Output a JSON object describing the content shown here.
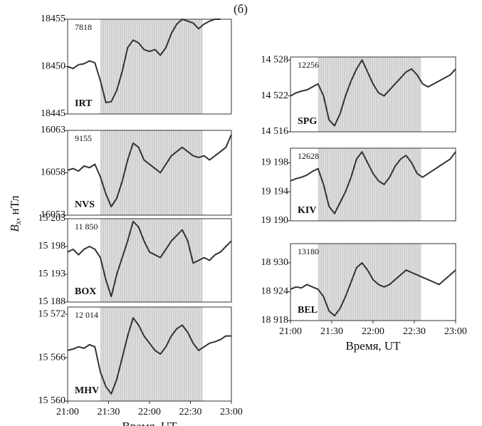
{
  "title": "(б)",
  "ylabel": {
    "symbol": "B",
    "subscript": "x",
    "unit": ", нТл"
  },
  "chart_data": [
    {
      "type": "line",
      "station": "IRT",
      "annotation": "7818",
      "shade": [
        "21:24",
        "22:39"
      ],
      "x": [
        "21:00",
        "21:04",
        "21:08",
        "21:12",
        "21:16",
        "21:20",
        "21:24",
        "21:28",
        "21:32",
        "21:36",
        "21:40",
        "21:44",
        "21:48",
        "21:52",
        "21:56",
        "22:00",
        "22:04",
        "22:08",
        "22:12",
        "22:16",
        "22:20",
        "22:24",
        "22:28",
        "22:32",
        "22:36",
        "22:40",
        "22:44",
        "22:48",
        "22:52",
        "22:56",
        "23:00"
      ],
      "values": [
        18450.0,
        18449.8,
        18450.2,
        18450.3,
        18450.6,
        18450.4,
        18448.5,
        18446.2,
        18446.3,
        18447.5,
        18449.5,
        18452.0,
        18452.8,
        18452.5,
        18451.8,
        18451.6,
        18451.8,
        18451.2,
        18452.0,
        18453.5,
        18454.5,
        18455.0,
        18454.8,
        18454.6,
        18454.0,
        18454.5,
        18454.8,
        18455.0,
        18455.0,
        null,
        null
      ],
      "xlim": [
        "21:00",
        "23:00"
      ],
      "ylim": [
        18445,
        18455
      ],
      "yticks": [
        18445,
        18450,
        18455
      ],
      "color": "#333333"
    },
    {
      "type": "line",
      "station": "NVS",
      "annotation": "9155",
      "shade": [
        "21:24",
        "22:39"
      ],
      "x": [
        "21:00",
        "21:04",
        "21:08",
        "21:12",
        "21:16",
        "21:20",
        "21:24",
        "21:28",
        "21:32",
        "21:36",
        "21:40",
        "21:44",
        "21:48",
        "21:52",
        "21:56",
        "22:00",
        "22:04",
        "22:08",
        "22:12",
        "22:16",
        "22:20",
        "22:24",
        "22:28",
        "22:32",
        "22:36",
        "22:40",
        "22:44",
        "22:48",
        "22:52",
        "22:56",
        "23:00"
      ],
      "values": [
        16058.3,
        16058.5,
        16058.2,
        16058.8,
        16058.6,
        16059.0,
        16057.5,
        16055.5,
        16054.0,
        16055.0,
        16057.0,
        16059.5,
        16061.5,
        16061.0,
        16059.5,
        16059.0,
        16058.5,
        16058.0,
        16059.0,
        16060.0,
        16060.5,
        16061.0,
        16060.5,
        16060.0,
        16059.8,
        16060.0,
        16059.5,
        16060.0,
        16060.5,
        16061.0,
        16062.5
      ],
      "xlim": [
        "21:00",
        "23:00"
      ],
      "ylim": [
        16053,
        16063
      ],
      "yticks": [
        16053,
        16058,
        16063
      ],
      "color": "#333333"
    },
    {
      "type": "line",
      "station": "BOX",
      "annotation": "11 850",
      "shade": [
        "21:24",
        "22:39"
      ],
      "x": [
        "21:00",
        "21:04",
        "21:08",
        "21:12",
        "21:16",
        "21:20",
        "21:24",
        "21:28",
        "21:32",
        "21:36",
        "21:40",
        "21:44",
        "21:48",
        "21:52",
        "21:56",
        "22:00",
        "22:04",
        "22:08",
        "22:12",
        "22:16",
        "22:20",
        "22:24",
        "22:28",
        "22:32",
        "22:36",
        "22:40",
        "22:44",
        "22:48",
        "22:52",
        "22:56",
        "23:00"
      ],
      "values": [
        15197,
        15197.5,
        15196.5,
        15197.5,
        15198,
        15197.5,
        15196,
        15192,
        15189,
        15193,
        15196,
        15199,
        15202.5,
        15201.5,
        15199,
        15197,
        15196.5,
        15196,
        15197.5,
        15199,
        15200,
        15201,
        15199,
        15195,
        15195.5,
        15196,
        15195.5,
        15196.5,
        15197,
        15198,
        15199
      ],
      "xlim": [
        "21:00",
        "23:00"
      ],
      "ylim": [
        15188,
        15203
      ],
      "yticks": [
        {
          "value": 15188,
          "label": "15 188"
        },
        {
          "value": 15193,
          "label": "15 193"
        },
        {
          "value": 15198,
          "label": "15 198"
        },
        {
          "value": 15203,
          "label": "15 203"
        }
      ],
      "color": "#333333"
    },
    {
      "type": "line",
      "station": "MHV",
      "annotation": "12 014",
      "shade": [
        "21:24",
        "22:39"
      ],
      "x": [
        "21:00",
        "21:04",
        "21:08",
        "21:12",
        "21:16",
        "21:20",
        "21:24",
        "21:28",
        "21:32",
        "21:36",
        "21:40",
        "21:44",
        "21:48",
        "21:52",
        "21:56",
        "22:00",
        "22:04",
        "22:08",
        "22:12",
        "22:16",
        "22:20",
        "22:24",
        "22:28",
        "22:32",
        "22:36",
        "22:40",
        "22:44",
        "22:48",
        "22:52",
        "22:56",
        "23:00"
      ],
      "values": [
        15567,
        15567.2,
        15567.5,
        15567.3,
        15567.8,
        15567.5,
        15564,
        15562,
        15561,
        15563,
        15566,
        15569,
        15571.5,
        15570.5,
        15569,
        15568,
        15567,
        15566.5,
        15567.5,
        15569,
        15570,
        15570.5,
        15569.5,
        15568,
        15567,
        15567.5,
        15568,
        15568.2,
        15568.5,
        15569,
        15569
      ],
      "xlim": [
        "21:00",
        "23:00"
      ],
      "ylim": [
        15560,
        15573
      ],
      "yticks": [
        {
          "value": 15560,
          "label": "15 560"
        },
        {
          "value": 15566,
          "label": "15 566"
        },
        {
          "value": 15572,
          "label": "15 572"
        }
      ],
      "xticks": [
        "21:00",
        "21:30",
        "22:00",
        "22:30",
        "23:00"
      ],
      "xlabel": "Время, UT",
      "color": "#333333"
    },
    {
      "type": "line",
      "station": "SPG",
      "annotation": "12256",
      "shade": [
        "21:20",
        "22:35"
      ],
      "x": [
        "21:00",
        "21:04",
        "21:08",
        "21:12",
        "21:16",
        "21:20",
        "21:24",
        "21:28",
        "21:32",
        "21:36",
        "21:40",
        "21:44",
        "21:48",
        "21:52",
        "21:56",
        "22:00",
        "22:04",
        "22:08",
        "22:12",
        "22:16",
        "22:20",
        "22:24",
        "22:28",
        "22:32",
        "22:36",
        "22:40",
        "22:44",
        "22:48",
        "22:52",
        "22:56",
        "23:00"
      ],
      "values": [
        14522,
        14522.5,
        14522.8,
        14523,
        14523.5,
        14524,
        14522,
        14518,
        14517,
        14519,
        14522,
        14524.5,
        14526.5,
        14528,
        14526,
        14524,
        14522.5,
        14522,
        14523,
        14524,
        14525,
        14526,
        14526.5,
        14525.5,
        14524,
        14523.5,
        14524,
        14524.5,
        14525,
        14525.5,
        14526.5
      ],
      "xlim": [
        "21:00",
        "23:00"
      ],
      "ylim": [
        14516,
        14528.5
      ],
      "yticks": [
        {
          "value": 14516,
          "label": "14 516"
        },
        {
          "value": 14522,
          "label": "14 522"
        },
        {
          "value": 14528,
          "label": "14 528"
        }
      ],
      "color": "#333333"
    },
    {
      "type": "line",
      "station": "KIV",
      "annotation": "12628",
      "shade": [
        "21:20",
        "22:35"
      ],
      "x": [
        "21:00",
        "21:04",
        "21:08",
        "21:12",
        "21:16",
        "21:20",
        "21:24",
        "21:28",
        "21:32",
        "21:36",
        "21:40",
        "21:44",
        "21:48",
        "21:52",
        "21:56",
        "22:00",
        "22:04",
        "22:08",
        "22:12",
        "22:16",
        "22:20",
        "22:24",
        "22:28",
        "22:32",
        "22:36",
        "22:40",
        "22:44",
        "22:48",
        "22:52",
        "22:56",
        "23:00"
      ],
      "values": [
        19195.5,
        19195.8,
        19196,
        19196.3,
        19196.8,
        19197.2,
        19195,
        19192,
        19191,
        19192.5,
        19194,
        19196,
        19198.5,
        19199.5,
        19198,
        19196.5,
        19195.5,
        19195,
        19196,
        19197.5,
        19198.5,
        19199,
        19198,
        19196.5,
        19196,
        19196.5,
        19197,
        19197.5,
        19198,
        19198.5,
        19199.5
      ],
      "xlim": [
        "21:00",
        "23:00"
      ],
      "ylim": [
        19190,
        19200
      ],
      "yticks": [
        {
          "value": 19190,
          "label": "19 190"
        },
        {
          "value": 19194,
          "label": "19 194"
        },
        {
          "value": 19198,
          "label": "19 198"
        }
      ],
      "color": "#333333"
    },
    {
      "type": "line",
      "station": "BEL",
      "annotation": "13180",
      "shade": [
        "21:20",
        "22:35"
      ],
      "x": [
        "21:00",
        "21:04",
        "21:08",
        "21:12",
        "21:16",
        "21:20",
        "21:24",
        "21:28",
        "21:32",
        "21:36",
        "21:40",
        "21:44",
        "21:48",
        "21:52",
        "21:56",
        "22:00",
        "22:04",
        "22:08",
        "22:12",
        "22:16",
        "22:20",
        "22:24",
        "22:28",
        "22:32",
        "22:36",
        "22:40",
        "22:44",
        "22:48",
        "22:52",
        "22:56",
        "23:00"
      ],
      "values": [
        18924.5,
        18925,
        18924.8,
        18925.5,
        18925,
        18924.5,
        18923,
        18920,
        18919,
        18920.5,
        18923,
        18926,
        18929,
        18930,
        18928.5,
        18926.5,
        18925.5,
        18925,
        18925.5,
        18926.5,
        18927.5,
        18928.5,
        18928,
        18927.5,
        18927,
        18926.5,
        18926,
        18925.5,
        18926.5,
        18927.5,
        18928.5
      ],
      "xlim": [
        "21:00",
        "23:00"
      ],
      "ylim": [
        18918,
        18934
      ],
      "yticks": [
        {
          "value": 18918,
          "label": "18 918"
        },
        {
          "value": 18924,
          "label": "18 924"
        },
        {
          "value": 18930,
          "label": "18 930"
        }
      ],
      "xticks": [
        "21:00",
        "21:30",
        "22:00",
        "22:30",
        "23:00"
      ],
      "xlabel": "Время, UT",
      "color": "#333333"
    }
  ]
}
